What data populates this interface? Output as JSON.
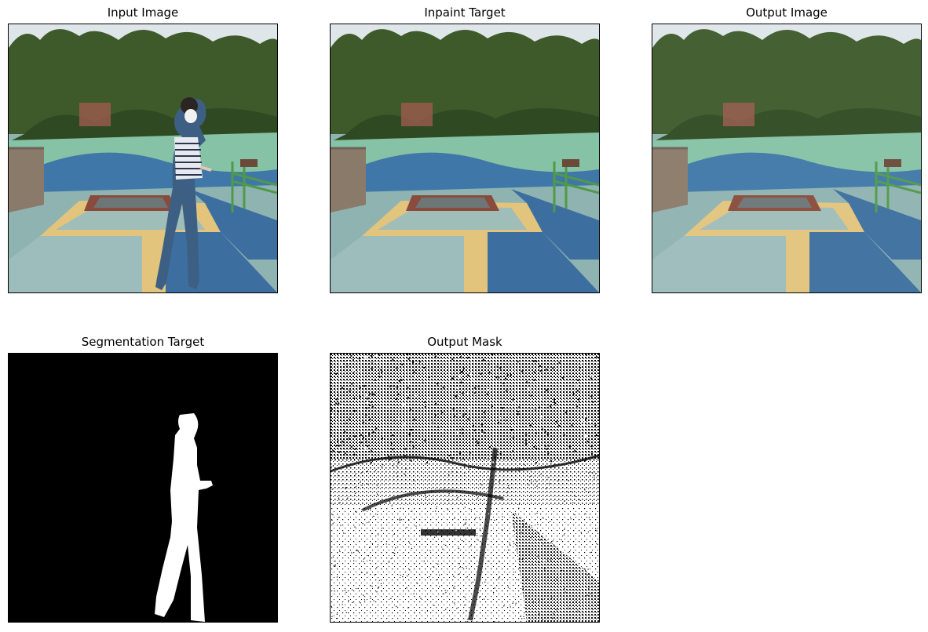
{
  "figure": {
    "panels": [
      {
        "id": "input",
        "title": "Input Image"
      },
      {
        "id": "inpaint",
        "title": "Inpaint Target"
      },
      {
        "id": "output",
        "title": "Output Image"
      },
      {
        "id": "segmentation",
        "title": "Segmentation Target"
      },
      {
        "id": "mask",
        "title": "Output Mask"
      }
    ]
  },
  "colors": {
    "sky": "#dfe6ea",
    "trees": "#3e5a2a",
    "wall_green": "#86c2a6",
    "wall_blue": "#3f78a8",
    "ground": "#8fb3b1",
    "yellow_path": "#e2c47c",
    "blue_path": "#3c6f9f",
    "trampoline_frame": "#8a4b3c",
    "trampoline_pad": "#6d7577",
    "railing": "#4f9a49",
    "brick": "#8a7a6a",
    "person_top": "#e6e9ee",
    "person_jeans": "#3e5f84"
  }
}
